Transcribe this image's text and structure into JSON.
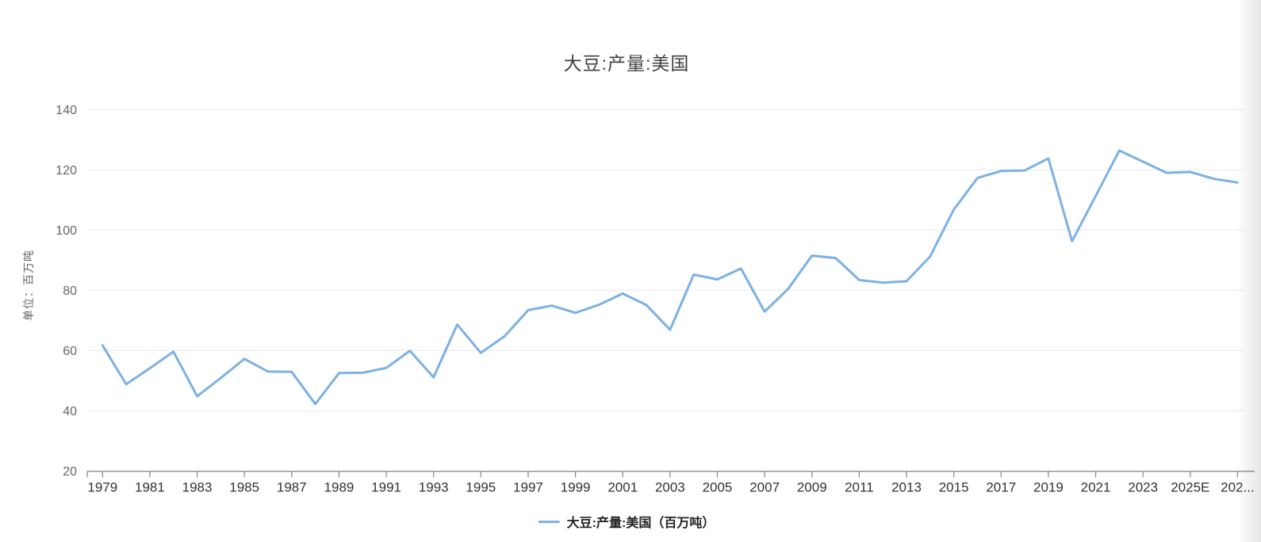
{
  "header": {
    "title": "大豆:产量:美国"
  },
  "legend": {
    "label": "大豆:产量:美国（百万吨）",
    "marker_color": "#7cb1e4"
  },
  "colors": {
    "line": "#7cb1e4",
    "grid": "#e9e9e9",
    "axis": "#8c8c8c",
    "y_tick_label": "#666666",
    "x_tick_label": "#333333",
    "title": "#404040"
  },
  "chart_data": {
    "type": "line",
    "title": "大豆:产量:美国",
    "ylabel": "单位：百万吨",
    "xlabel": "",
    "unit": "百万吨",
    "ylim": [
      20,
      140
    ],
    "y_ticks": [
      140,
      120,
      100,
      80,
      60,
      40,
      20
    ],
    "grid": "horizontal-only",
    "legend_position": "bottom",
    "x_tick_labels": [
      "1979",
      "1981",
      "1983",
      "1985",
      "1987",
      "1989",
      "1991",
      "1993",
      "1995",
      "1997",
      "1999",
      "2001",
      "2003",
      "2005",
      "2007",
      "2009",
      "2011",
      "2013",
      "2015",
      "2017",
      "2019",
      "2021",
      "2023",
      "2025E",
      "202..."
    ],
    "x": [
      1979,
      1980,
      1981,
      1982,
      1983,
      1984,
      1985,
      1986,
      1987,
      1988,
      1989,
      1990,
      1991,
      1992,
      1993,
      1994,
      1995,
      1996,
      1997,
      1998,
      1999,
      2000,
      2001,
      2002,
      2003,
      2004,
      2005,
      2006,
      2007,
      2008,
      2009,
      2010,
      2011,
      2012,
      2013,
      2014,
      2015,
      2016,
      2017,
      2018,
      2019,
      2020,
      2021,
      2022,
      2023,
      2024,
      2025,
      2026,
      2027
    ],
    "series": [
      {
        "name": "大豆:产量:美国（百万吨）",
        "color": "#7cb1e4",
        "values": [
          61.7,
          48.8,
          54.1,
          59.6,
          44.8,
          50.9,
          57.2,
          53.0,
          52.9,
          42.2,
          52.5,
          52.6,
          54.2,
          59.9,
          51.1,
          68.6,
          59.2,
          64.7,
          73.4,
          74.9,
          72.5,
          75.2,
          78.9,
          75.1,
          66.9,
          85.2,
          83.6,
          87.2,
          72.9,
          80.5,
          91.5,
          90.7,
          83.4,
          82.5,
          83.0,
          91.2,
          106.8,
          117.3,
          119.6,
          119.8,
          123.8,
          96.3,
          111.3,
          126.4,
          122.7,
          119.0,
          119.3,
          117.0,
          115.8
        ]
      }
    ]
  }
}
